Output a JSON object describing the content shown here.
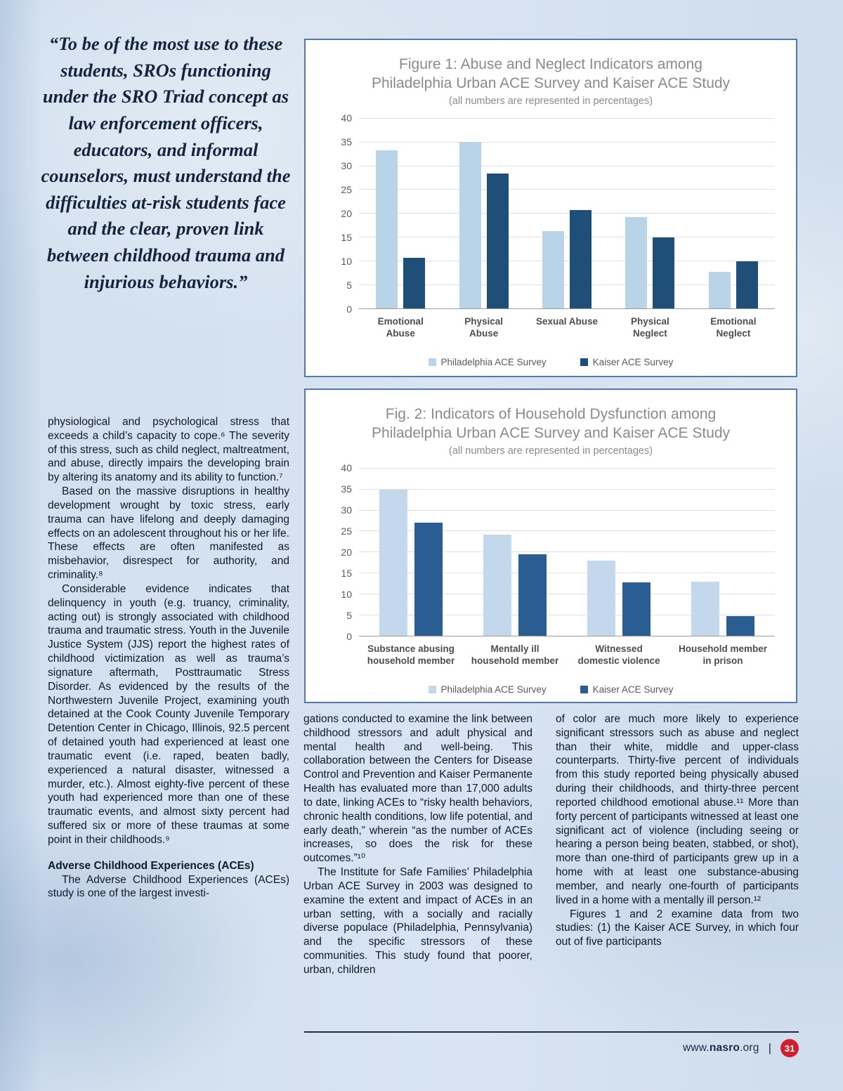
{
  "pull_quote": {
    "text": "“To be of the most use to these students, SROs functioning under the SRO Triad concept as law enforcement officers, educators, and informal counselors, must understand the difficulties at-risk students face and the clear, proven link between childhood trauma and injurious behaviors.”"
  },
  "chart_data": [
    {
      "type": "bar",
      "title_line1": "Figure 1: Abuse and Neglect Indicators among",
      "title_line2": "Philadelphia Urban ACE Survey and Kaiser ACE Study",
      "subtitle": "(all numbers are represented in percentages)",
      "categories": [
        "Emotional Abuse",
        "Physical Abuse",
        "Sexual Abuse",
        "Physical Neglect",
        "Emotional Neglect"
      ],
      "series": [
        {
          "name": "Philadelphia ACE Survey",
          "color": "#b9d3e9",
          "values": [
            33.2,
            35.0,
            16.2,
            19.1,
            7.7
          ]
        },
        {
          "name": "Kaiser ACE Survey",
          "color": "#1f4e79",
          "values": [
            10.6,
            28.3,
            20.7,
            14.8,
            9.9
          ]
        }
      ],
      "yticks": [
        0,
        5,
        10,
        15,
        20,
        25,
        30,
        35,
        40
      ],
      "ylim": [
        0,
        40
      ],
      "grid": true,
      "legend_position": "bottom"
    },
    {
      "type": "bar",
      "title_line1": "Fig. 2: Indicators of Household Dysfunction among",
      "title_line2": "Philadelphia Urban ACE Survey and Kaiser ACE Study",
      "subtitle": "(all numbers are represented in percentages)",
      "categories": [
        "Substance abusing household member",
        "Mentally ill household member",
        "Witnessed domestic violence",
        "Household member in prison"
      ],
      "series": [
        {
          "name": "Philadelphia ACE Survey",
          "color": "#c3d8ec",
          "values": [
            34.8,
            24.1,
            17.9,
            12.9
          ]
        },
        {
          "name": "Kaiser ACE Survey",
          "color": "#2a5e93",
          "values": [
            26.9,
            19.4,
            12.7,
            4.7
          ]
        }
      ],
      "yticks": [
        0,
        5,
        10,
        15,
        20,
        25,
        30,
        35,
        40
      ],
      "ylim": [
        0,
        40
      ],
      "grid": true,
      "legend_position": "bottom"
    }
  ],
  "columns": {
    "left": {
      "p1": "physiological and psychological stress that exceeds a child’s capacity to cope.⁶  The severity of this stress, such as child neglect, maltreatment, and abuse, directly impairs the developing brain by altering its anatomy and its ability to function.⁷",
      "p2": "Based on the massive disruptions in healthy development wrought by toxic stress, early trauma can have lifelong and deeply damaging effects on an adolescent throughout his or her life. These effects are often manifested as misbehavior, disrespect for authority, and criminality.⁸",
      "p3": "Considerable evidence indicates that delinquency in youth (e.g. truancy, criminality, acting out) is strongly associated with childhood trauma and traumatic stress. Youth in the Juvenile Justice System (JJS) report the highest rates of childhood victimization as well as trauma’s signature aftermath, Posttraumatic Stress Disorder. As evidenced by the results of the Northwestern Juvenile Project, examining youth detained at the Cook County Juvenile Temporary Detention Center in Chicago, Illinois, 92.5 percent of detained youth had experienced at least one traumatic event (i.e. raped, beaten badly, experienced a natural disaster, witnessed a murder, etc.). Almost eighty-five percent of these youth had experienced more than one of these traumatic events, and almost sixty percent had suffered six or more of these traumas at some point in their childhoods.⁹",
      "heading": "Adverse Childhood Experiences (ACEs)",
      "p4": "The Adverse Childhood Experiences (ACEs) study is one of the largest investi-"
    },
    "middle": {
      "p1": "gations conducted to examine the link between childhood stressors and adult physical and mental health and well-being. This collaboration between the Centers for Disease Control and Prevention and Kaiser Permanente Health has evaluated more than 17,000 adults to date, linking ACEs to “risky health behaviors, chronic health conditions, low life potential, and early death,” wherein “as the number of ACEs increases, so does the risk for these outcomes.”¹⁰",
      "p2": "The Institute for Safe Families’ Philadelphia Urban ACE Survey in 2003 was designed to examine the extent and impact of ACEs in an urban setting, with a socially and racially diverse populace (Philadelphia, Pennsylvania) and the specific stressors of these communities. This study found that poorer, urban, children"
    },
    "right": {
      "p1": "of color are much more likely to experience significant stressors such as abuse and neglect than their white, middle and upper-class counterparts. Thirty-five percent of individuals from this study reported being physically abused during their childhoods, and thirty-three percent reported childhood emotional abuse.¹¹ More than forty percent of participants witnessed at least one significant act of violence (including seeing or hearing a person being beaten, stabbed, or shot), more than one-third of participants grew up in a home with at least one substance-abusing member, and nearly one-fourth of participants lived in a home with a mentally ill person.¹²",
      "p2": "Figures 1 and 2 examine data from two studies: (1) the Kaiser ACE Survey, in which four out of five participants"
    }
  },
  "footer": {
    "url_www": "www.",
    "url_name": "nasro",
    "url_tld": ".org",
    "divider": "|",
    "page_number": "31"
  }
}
